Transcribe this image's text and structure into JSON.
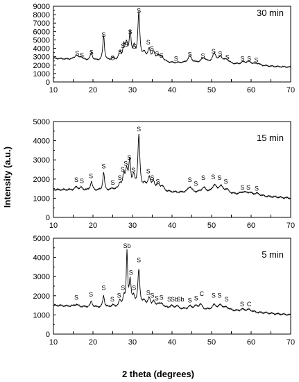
{
  "figure": {
    "ylabel": "Intensity (a.u.)",
    "xlabel": "2 theta (degrees)"
  },
  "chart_data": [
    {
      "type": "line",
      "title": "30 min",
      "xlim": [
        10,
        70
      ],
      "ylim": [
        0,
        9000
      ],
      "xticks": [
        10,
        15,
        20,
        25,
        30,
        35,
        40,
        45,
        50,
        55,
        60,
        65,
        70
      ],
      "yticks": [
        0,
        1000,
        2000,
        3000,
        4000,
        5000,
        6000,
        7000,
        8000,
        9000
      ],
      "grid": false,
      "baseline": [
        [
          10,
          2800
        ],
        [
          20,
          2550
        ],
        [
          30,
          2400
        ],
        [
          40,
          2250
        ],
        [
          50,
          2150
        ],
        [
          60,
          1950
        ],
        [
          70,
          1750
        ]
      ],
      "peaks": [
        [
          15.8,
          500,
          0.5
        ],
        [
          17,
          350,
          0.4
        ],
        [
          19.6,
          900,
          0.3
        ],
        [
          22.7,
          3000,
          0.25
        ],
        [
          25,
          300,
          0.5
        ],
        [
          26.8,
          900,
          0.4
        ],
        [
          27.8,
          1600,
          0.3
        ],
        [
          28.5,
          1800,
          0.35
        ],
        [
          29.4,
          3200,
          0.3
        ],
        [
          30.4,
          1500,
          0.35
        ],
        [
          31.6,
          5700,
          0.3
        ],
        [
          33,
          900,
          0.5
        ],
        [
          34.2,
          1300,
          0.4
        ],
        [
          35.3,
          1000,
          0.4
        ],
        [
          36.5,
          700,
          0.5
        ],
        [
          37.5,
          500,
          0.6
        ],
        [
          44.5,
          800,
          0.6
        ],
        [
          48,
          600,
          0.8
        ],
        [
          50.7,
          1100,
          0.6
        ],
        [
          52.3,
          700,
          0.6
        ],
        [
          53.8,
          500,
          0.8
        ],
        [
          58,
          300,
          0.8
        ],
        [
          59.5,
          350,
          0.8
        ],
        [
          61.5,
          250,
          0.8
        ]
      ],
      "annotations": [
        {
          "x": 16,
          "y": 3150,
          "text": "S"
        },
        {
          "x": 17.2,
          "y": 2950,
          "text": "S"
        },
        {
          "x": 19.6,
          "y": 3250,
          "text": "S"
        },
        {
          "x": 22.7,
          "y": 5350,
          "text": "S"
        },
        {
          "x": 25,
          "y": 2600,
          "text": "S"
        },
        {
          "x": 26.9,
          "y": 3300,
          "text": "S"
        },
        {
          "x": 27.6,
          "y": 4050,
          "text": "S"
        },
        {
          "x": 28.4,
          "y": 4200,
          "text": "S"
        },
        {
          "x": 29.4,
          "y": 5700,
          "text": "S"
        },
        {
          "x": 30.5,
          "y": 3950,
          "text": "S"
        },
        {
          "x": 31.6,
          "y": 8200,
          "text": "S"
        },
        {
          "x": 34,
          "y": 4450,
          "text": "S"
        },
        {
          "x": 34.9,
          "y": 3700,
          "text": "S"
        },
        {
          "x": 36.2,
          "y": 3100,
          "text": "S"
        },
        {
          "x": 37.3,
          "y": 2900,
          "text": "S"
        },
        {
          "x": 41,
          "y": 2500,
          "text": "S"
        },
        {
          "x": 44.5,
          "y": 3000,
          "text": "S"
        },
        {
          "x": 47.8,
          "y": 2850,
          "text": "S"
        },
        {
          "x": 50.5,
          "y": 3400,
          "text": "S"
        },
        {
          "x": 52.2,
          "y": 3100,
          "text": "S"
        },
        {
          "x": 54,
          "y": 2700,
          "text": "S"
        },
        {
          "x": 57.8,
          "y": 2500,
          "text": "S"
        },
        {
          "x": 59.5,
          "y": 2500,
          "text": "S"
        },
        {
          "x": 61.3,
          "y": 2350,
          "text": "S"
        }
      ]
    },
    {
      "type": "line",
      "title": "15 min",
      "xlim": [
        10,
        70
      ],
      "ylim": [
        0,
        5000
      ],
      "xticks": [
        10,
        15,
        20,
        25,
        30,
        35,
        40,
        45,
        50,
        55,
        60,
        65,
        70
      ],
      "yticks": [
        0,
        1000,
        2000,
        3000,
        4000,
        5000
      ],
      "grid": false,
      "baseline": [
        [
          10,
          1450
        ],
        [
          20,
          1400
        ],
        [
          30,
          1350
        ],
        [
          40,
          1300
        ],
        [
          50,
          1250
        ],
        [
          60,
          1150
        ],
        [
          70,
          1000
        ]
      ],
      "peaks": [
        [
          15.8,
          150,
          0.5
        ],
        [
          17,
          120,
          0.4
        ],
        [
          19.6,
          450,
          0.3
        ],
        [
          22.7,
          950,
          0.25
        ],
        [
          25,
          100,
          0.5
        ],
        [
          26.8,
          350,
          0.4
        ],
        [
          27.8,
          750,
          0.3
        ],
        [
          28.5,
          950,
          0.35
        ],
        [
          29.3,
          1450,
          0.3
        ],
        [
          30.3,
          650,
          0.35
        ],
        [
          31.6,
          2850,
          0.3
        ],
        [
          33,
          300,
          0.5
        ],
        [
          34.2,
          700,
          0.4
        ],
        [
          35.3,
          450,
          0.4
        ],
        [
          36.5,
          300,
          0.5
        ],
        [
          37.5,
          250,
          0.6
        ],
        [
          44.5,
          300,
          0.6
        ],
        [
          48,
          250,
          0.8
        ],
        [
          50.7,
          400,
          0.6
        ],
        [
          52.3,
          350,
          0.6
        ],
        [
          53.8,
          200,
          0.8
        ],
        [
          58,
          120,
          0.8
        ],
        [
          59.5,
          120,
          0.8
        ],
        [
          61.5,
          100,
          0.8
        ]
      ],
      "annotations": [
        {
          "x": 15.8,
          "y": 1850,
          "text": "S"
        },
        {
          "x": 17.2,
          "y": 1800,
          "text": "S"
        },
        {
          "x": 19.5,
          "y": 2050,
          "text": "S"
        },
        {
          "x": 22.7,
          "y": 2550,
          "text": "S"
        },
        {
          "x": 25,
          "y": 1700,
          "text": "S"
        },
        {
          "x": 26.8,
          "y": 1950,
          "text": "S"
        },
        {
          "x": 27.5,
          "y": 2400,
          "text": "S"
        },
        {
          "x": 28.3,
          "y": 2700,
          "text": "S"
        },
        {
          "x": 29.2,
          "y": 3000,
          "text": "S"
        },
        {
          "x": 30.2,
          "y": 2350,
          "text": "S"
        },
        {
          "x": 31.6,
          "y": 4500,
          "text": "S"
        },
        {
          "x": 34,
          "y": 2300,
          "text": "S"
        },
        {
          "x": 35,
          "y": 1950,
          "text": "S"
        },
        {
          "x": 36.4,
          "y": 1750,
          "text": "S"
        },
        {
          "x": 44.5,
          "y": 1850,
          "text": "S"
        },
        {
          "x": 46,
          "y": 1650,
          "text": "S"
        },
        {
          "x": 47.9,
          "y": 1950,
          "text": "S"
        },
        {
          "x": 50.4,
          "y": 2000,
          "text": "S"
        },
        {
          "x": 52,
          "y": 1950,
          "text": "S"
        },
        {
          "x": 53.6,
          "y": 1750,
          "text": "S"
        },
        {
          "x": 57.8,
          "y": 1450,
          "text": "S"
        },
        {
          "x": 59.3,
          "y": 1450,
          "text": "S"
        },
        {
          "x": 61.4,
          "y": 1400,
          "text": "S"
        }
      ]
    },
    {
      "type": "line",
      "title": "5 min",
      "xlim": [
        10,
        70
      ],
      "ylim": [
        0,
        5000
      ],
      "xticks": [
        10,
        15,
        20,
        25,
        30,
        35,
        40,
        45,
        50,
        55,
        60,
        65,
        70
      ],
      "yticks": [
        0,
        1000,
        2000,
        3000,
        4000,
        5000
      ],
      "grid": false,
      "baseline": [
        [
          10,
          1500
        ],
        [
          20,
          1400
        ],
        [
          30,
          1350
        ],
        [
          40,
          1300
        ],
        [
          50,
          1250
        ],
        [
          60,
          1150
        ],
        [
          70,
          1000
        ]
      ],
      "peaks": [
        [
          15.8,
          100,
          0.5
        ],
        [
          19.6,
          300,
          0.3
        ],
        [
          22.7,
          600,
          0.25
        ],
        [
          25,
          100,
          0.5
        ],
        [
          26.8,
          300,
          0.4
        ],
        [
          27.8,
          500,
          0.3
        ],
        [
          28.6,
          2800,
          0.2
        ],
        [
          29.4,
          1300,
          0.3
        ],
        [
          30.3,
          500,
          0.35
        ],
        [
          31.6,
          1950,
          0.3
        ],
        [
          33,
          300,
          0.5
        ],
        [
          34.2,
          450,
          0.4
        ],
        [
          35.3,
          300,
          0.4
        ],
        [
          36.5,
          200,
          0.5
        ],
        [
          37.5,
          200,
          0.6
        ],
        [
          39.8,
          150,
          0.5
        ],
        [
          41.2,
          150,
          0.5
        ],
        [
          44.5,
          150,
          0.6
        ],
        [
          46,
          150,
          0.6
        ],
        [
          47.2,
          250,
          0.5
        ],
        [
          50.7,
          250,
          0.6
        ],
        [
          52.3,
          250,
          0.6
        ],
        [
          53.8,
          150,
          0.8
        ],
        [
          57.8,
          100,
          0.8
        ],
        [
          59.5,
          100,
          0.8
        ]
      ],
      "annotations": [
        {
          "x": 15.8,
          "y": 1800,
          "text": "S"
        },
        {
          "x": 19.5,
          "y": 1950,
          "text": "S"
        },
        {
          "x": 22.7,
          "y": 2300,
          "text": "S"
        },
        {
          "x": 24.9,
          "y": 1700,
          "text": "S"
        },
        {
          "x": 26.6,
          "y": 1900,
          "text": "S"
        },
        {
          "x": 27.6,
          "y": 2300,
          "text": "S"
        },
        {
          "x": 28.6,
          "y": 4500,
          "text": "Sb"
        },
        {
          "x": 29.6,
          "y": 3100,
          "text": "S"
        },
        {
          "x": 30.4,
          "y": 2300,
          "text": "S"
        },
        {
          "x": 31.6,
          "y": 3750,
          "text": "S"
        },
        {
          "x": 34,
          "y": 2050,
          "text": "S"
        },
        {
          "x": 35,
          "y": 1900,
          "text": "S"
        },
        {
          "x": 36.1,
          "y": 1750,
          "text": "S"
        },
        {
          "x": 37.3,
          "y": 1800,
          "text": "S"
        },
        {
          "x": 39.3,
          "y": 1700,
          "text": "S"
        },
        {
          "x": 40.6,
          "y": 1700,
          "text": "Sb"
        },
        {
          "x": 42.1,
          "y": 1700,
          "text": "Sb"
        },
        {
          "x": 44.5,
          "y": 1650,
          "text": "S"
        },
        {
          "x": 46.1,
          "y": 1750,
          "text": "S"
        },
        {
          "x": 47.5,
          "y": 2000,
          "text": "C"
        },
        {
          "x": 50.5,
          "y": 1900,
          "text": "S"
        },
        {
          "x": 52,
          "y": 1900,
          "text": "S"
        },
        {
          "x": 53.8,
          "y": 1700,
          "text": "S"
        },
        {
          "x": 57.7,
          "y": 1450,
          "text": "S"
        },
        {
          "x": 59.5,
          "y": 1450,
          "text": "C"
        }
      ]
    }
  ]
}
